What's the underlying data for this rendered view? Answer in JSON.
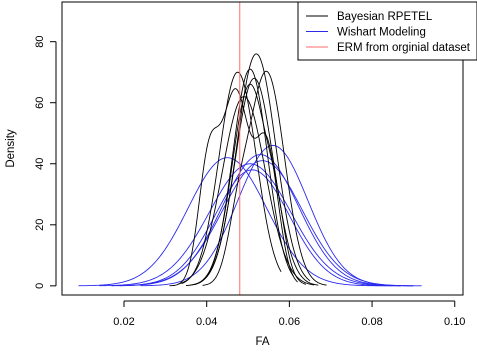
{
  "chart_data": {
    "type": "line",
    "title": "",
    "xlabel": "FA",
    "ylabel": "Density",
    "xlim": [
      0.005,
      0.102
    ],
    "ylim": [
      -3,
      93
    ],
    "x_ticks": [
      0.02,
      0.04,
      0.06,
      0.08,
      0.1
    ],
    "x_tick_labels": [
      "0.02",
      "0.04",
      "0.06",
      "0.08",
      "0.10"
    ],
    "y_ticks": [
      0,
      20,
      40,
      60,
      80
    ],
    "y_tick_labels": [
      "0",
      "20",
      "40",
      "60",
      "80"
    ],
    "grid": false,
    "legend_position": "top-right",
    "legend": [
      {
        "label": "Bayesian RPETEL",
        "color": "#000000"
      },
      {
        "label": "Wishart Modeling",
        "color": "#2b2bef"
      },
      {
        "label": "ERM from orginial dataset",
        "color": "#ff6b6b"
      }
    ],
    "vline": {
      "x": 0.048,
      "color": "#ff6b6b"
    },
    "colors": {
      "bayesian": "#000000",
      "wishart": "#2b2bef",
      "erm": "#ff6b6b"
    },
    "bayesian_curves": [
      {
        "peaks": [
          [
            0.0475,
            0.0045,
            70
          ]
        ],
        "range": [
          0.034,
          0.058
        ]
      },
      {
        "peaks": [
          [
            0.0505,
            0.0042,
            71
          ]
        ],
        "range": [
          0.037,
          0.061
        ]
      },
      {
        "peaks": [
          [
            0.052,
            0.0047,
            76
          ]
        ],
        "range": [
          0.038,
          0.065
        ]
      },
      {
        "peaks": [
          [
            0.0405,
            0.0025,
            40
          ],
          [
            0.047,
            0.0032,
            62
          ],
          [
            0.0545,
            0.0028,
            45
          ]
        ],
        "range": [
          0.031,
          0.062
        ]
      },
      {
        "peaks": [
          [
            0.0545,
            0.0043,
            70
          ],
          [
            0.0475,
            0.0025,
            15
          ]
        ],
        "range": [
          0.039,
          0.069
        ]
      },
      {
        "peaks": [
          [
            0.049,
            0.0052,
            62
          ]
        ],
        "range": [
          0.033,
          0.066
        ]
      },
      {
        "peaks": [
          [
            0.0515,
            0.0046,
            68
          ]
        ],
        "range": [
          0.036,
          0.067
        ]
      },
      {
        "peaks": [
          [
            0.0505,
            0.0043,
            66
          ],
          [
            0.057,
            0.002,
            12
          ]
        ],
        "range": [
          0.035,
          0.064
        ]
      }
    ],
    "wishart_curves": [
      {
        "peaks": [
          [
            0.045,
            0.0095,
            42
          ]
        ],
        "range": [
          0.009,
          0.085
        ]
      },
      {
        "peaks": [
          [
            0.0505,
            0.0098,
            40
          ]
        ],
        "range": [
          0.014,
          0.087
        ]
      },
      {
        "peaks": [
          [
            0.053,
            0.0092,
            43
          ]
        ],
        "range": [
          0.019,
          0.09
        ]
      },
      {
        "peaks": [
          [
            0.056,
            0.0085,
            46
          ]
        ],
        "range": [
          0.024,
          0.092
        ]
      },
      {
        "peaks": [
          [
            0.0535,
            0.0096,
            41
          ]
        ],
        "range": [
          0.019,
          0.09
        ]
      },
      {
        "peaks": [
          [
            0.051,
            0.009,
            38
          ]
        ],
        "range": [
          0.017,
          0.087
        ]
      }
    ]
  }
}
